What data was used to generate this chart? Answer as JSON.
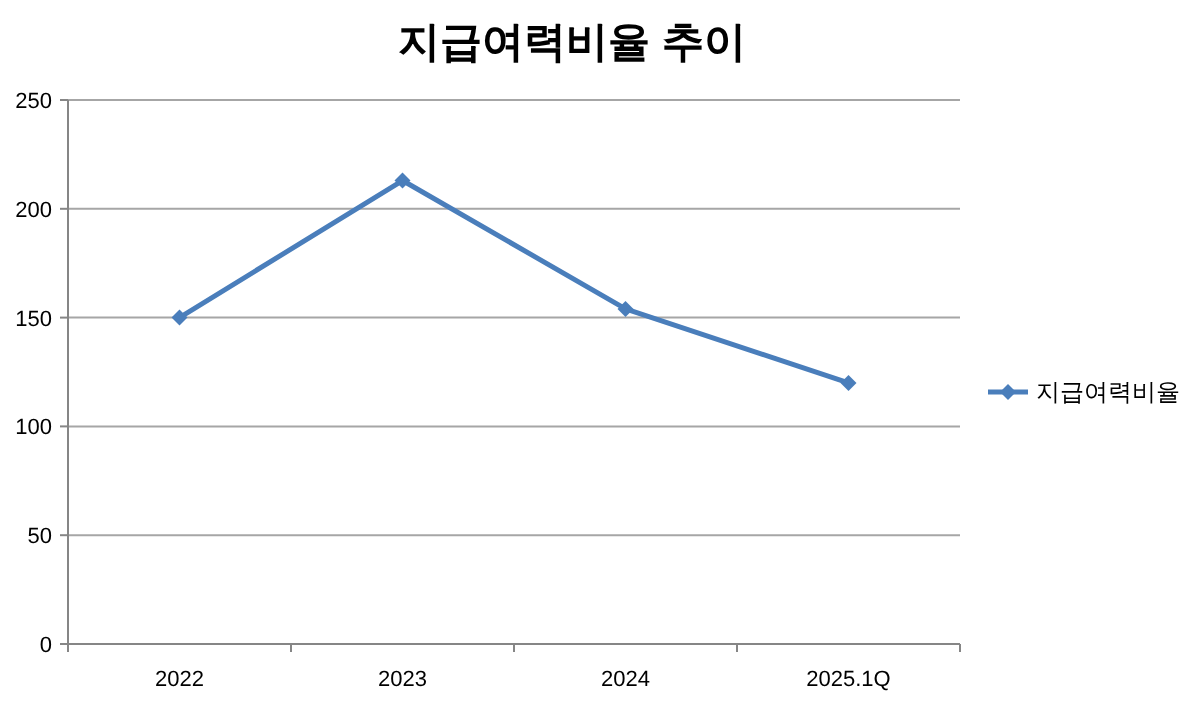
{
  "chart_data": {
    "type": "line",
    "title": "지급여력비율 추이",
    "categories": [
      "2022",
      "2023",
      "2024",
      "2025.1Q"
    ],
    "series": [
      {
        "name": "지급여력비율",
        "color": "#4a7ebb",
        "values": [
          150,
          213,
          154,
          120
        ]
      }
    ],
    "ylim": [
      0,
      250
    ],
    "yticks": [
      0,
      50,
      100,
      150,
      200,
      250
    ],
    "grid": "y",
    "legend": "right",
    "marker": "diamond",
    "line_style": "solid"
  }
}
